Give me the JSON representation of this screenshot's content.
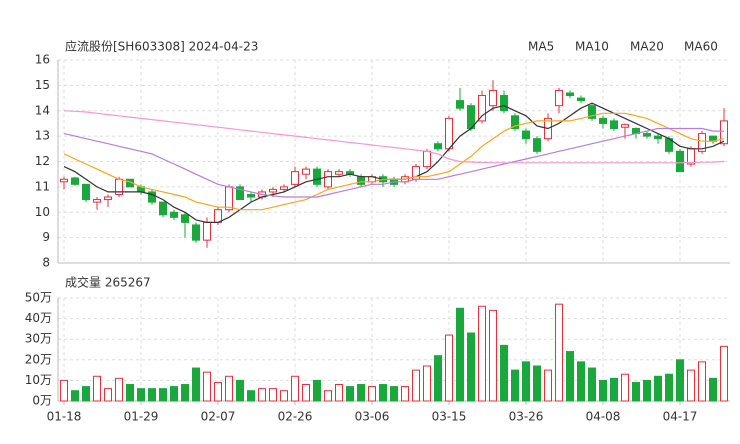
{
  "chart_data": [
    {
      "type": "candlestick",
      "title": "应流股份[SH603308] 2024-04-23",
      "open": [
        11.2,
        11.35,
        11.1,
        10.4,
        10.5,
        10.7,
        11.3,
        11.0,
        10.8,
        10.4,
        10.0,
        9.9,
        9.5,
        8.9,
        9.6,
        10.1,
        11.0,
        10.7,
        10.6,
        10.8,
        10.9,
        11.1,
        11.5,
        11.7,
        11.0,
        11.5,
        11.6,
        11.4,
        11.2,
        11.4,
        11.3,
        11.2,
        11.3,
        11.8,
        12.7,
        12.5,
        14.4,
        14.2,
        13.6,
        14.2,
        14.6,
        13.8,
        13.2,
        12.9,
        12.9,
        14.2,
        14.7,
        14.5,
        14.2,
        13.7,
        13.6,
        13.35,
        13.3,
        13.1,
        13.0,
        12.9,
        12.4,
        11.9,
        12.4,
        13.0,
        12.7
      ],
      "close": [
        11.3,
        11.1,
        10.5,
        10.5,
        10.6,
        11.3,
        11.0,
        10.8,
        10.4,
        9.9,
        9.8,
        9.6,
        8.9,
        9.6,
        10.1,
        11.0,
        10.5,
        10.6,
        10.8,
        10.9,
        11.0,
        11.6,
        11.7,
        11.1,
        11.6,
        11.6,
        11.5,
        11.1,
        11.4,
        11.2,
        11.1,
        11.4,
        11.8,
        12.4,
        12.5,
        13.7,
        14.1,
        13.3,
        14.6,
        14.8,
        14.0,
        13.3,
        12.9,
        12.4,
        13.7,
        14.8,
        14.6,
        14.4,
        13.7,
        13.5,
        13.3,
        13.45,
        13.1,
        13.0,
        12.9,
        12.4,
        11.6,
        12.5,
        13.1,
        12.8,
        13.6
      ],
      "high": [
        11.4,
        11.4,
        11.1,
        10.6,
        10.7,
        11.4,
        11.3,
        11.1,
        10.9,
        10.4,
        10.1,
        10.0,
        9.6,
        9.8,
        10.2,
        11.1,
        11.1,
        10.8,
        10.9,
        11.0,
        11.1,
        11.8,
        11.8,
        11.8,
        11.7,
        11.7,
        11.7,
        11.5,
        11.5,
        11.5,
        11.4,
        11.5,
        11.9,
        12.5,
        12.8,
        13.8,
        14.9,
        14.3,
        14.8,
        15.2,
        14.8,
        13.9,
        13.3,
        13.0,
        13.9,
        14.9,
        14.8,
        14.6,
        14.3,
        13.8,
        13.7,
        13.5,
        13.35,
        13.2,
        13.1,
        13.0,
        12.5,
        12.6,
        13.2,
        13.0,
        14.1
      ],
      "low": [
        10.9,
        11.05,
        10.4,
        10.1,
        10.2,
        10.6,
        11.0,
        10.7,
        10.3,
        9.8,
        9.7,
        9.0,
        8.8,
        8.6,
        9.5,
        10.0,
        10.5,
        10.4,
        10.5,
        10.6,
        10.8,
        11.0,
        11.3,
        11.0,
        10.9,
        11.4,
        11.4,
        11.0,
        11.1,
        11.0,
        11.0,
        11.1,
        11.2,
        11.7,
        12.4,
        12.4,
        14.0,
        13.2,
        13.5,
        14.0,
        13.9,
        13.2,
        12.7,
        12.3,
        12.8,
        13.9,
        14.5,
        14.3,
        13.6,
        13.3,
        13.2,
        12.9,
        12.9,
        12.9,
        12.7,
        12.3,
        11.6,
        11.8,
        12.3,
        12.7,
        12.6
      ],
      "up_color": "#e5303d",
      "down_color": "#1aa83c",
      "series": [
        {
          "name": "MA5",
          "color": "#333333",
          "values": [
            11.8,
            11.6,
            11.3,
            11.0,
            10.8,
            10.8,
            10.8,
            10.8,
            10.7,
            10.5,
            10.2,
            10.0,
            9.7,
            9.6,
            9.6,
            9.8,
            10.1,
            10.4,
            10.6,
            10.7,
            10.8,
            11.0,
            11.2,
            11.3,
            11.4,
            11.4,
            11.5,
            11.4,
            11.4,
            11.3,
            11.3,
            11.3,
            11.4,
            11.6,
            12.0,
            12.5,
            13.0,
            13.3,
            13.8,
            14.1,
            14.2,
            14.0,
            13.8,
            13.4,
            13.3,
            13.5,
            13.8,
            14.1,
            14.3,
            14.1,
            13.9,
            13.7,
            13.5,
            13.3,
            13.1,
            12.9,
            12.6,
            12.5,
            12.5,
            12.6,
            12.8
          ]
        },
        {
          "name": "MA10",
          "color": "#f5a623",
          "values": [
            12.3,
            12.1,
            11.9,
            11.7,
            11.5,
            11.3,
            11.2,
            11.0,
            10.9,
            10.8,
            10.7,
            10.6,
            10.4,
            10.3,
            10.2,
            10.2,
            10.1,
            10.1,
            10.1,
            10.2,
            10.3,
            10.4,
            10.5,
            10.7,
            10.9,
            11.0,
            11.1,
            11.2,
            11.2,
            11.3,
            11.3,
            11.3,
            11.4,
            11.4,
            11.5,
            11.6,
            11.9,
            12.2,
            12.6,
            12.9,
            13.2,
            13.4,
            13.5,
            13.6,
            13.6,
            13.6,
            13.6,
            13.7,
            13.8,
            13.9,
            13.9,
            13.9,
            13.8,
            13.7,
            13.5,
            13.3,
            13.1,
            12.9,
            12.8,
            12.8,
            12.9
          ]
        },
        {
          "name": "MA20",
          "color": "#b57edc",
          "values": [
            13.1,
            13.0,
            12.9,
            12.8,
            12.7,
            12.6,
            12.5,
            12.4,
            12.3,
            12.1,
            11.9,
            11.7,
            11.5,
            11.3,
            11.1,
            11.0,
            10.9,
            10.8,
            10.7,
            10.65,
            10.6,
            10.6,
            10.6,
            10.6,
            10.7,
            10.8,
            10.9,
            11.0,
            11.1,
            11.1,
            11.2,
            11.2,
            11.3,
            11.3,
            11.3,
            11.4,
            11.5,
            11.6,
            11.7,
            11.8,
            11.9,
            12.0,
            12.1,
            12.2,
            12.3,
            12.4,
            12.5,
            12.6,
            12.7,
            12.8,
            12.9,
            13.0,
            13.1,
            13.2,
            13.3,
            13.3,
            13.3,
            13.3,
            13.3,
            13.2,
            13.2
          ]
        },
        {
          "name": "MA60",
          "color": "#f29ad1",
          "values": [
            14.0,
            13.98,
            13.95,
            13.9,
            13.85,
            13.8,
            13.75,
            13.7,
            13.65,
            13.6,
            13.55,
            13.5,
            13.45,
            13.4,
            13.35,
            13.3,
            13.25,
            13.2,
            13.15,
            13.1,
            13.05,
            13.0,
            12.95,
            12.9,
            12.85,
            12.8,
            12.75,
            12.7,
            12.65,
            12.6,
            12.55,
            12.5,
            12.45,
            12.4,
            12.3,
            12.1,
            12.0,
            11.98,
            11.96,
            11.95,
            11.95,
            11.95,
            11.95,
            11.95,
            11.95,
            11.95,
            11.95,
            11.95,
            11.95,
            11.95,
            11.95,
            11.95,
            11.95,
            11.95,
            11.95,
            11.95,
            11.95,
            11.96,
            11.97,
            11.98,
            12.0
          ]
        }
      ],
      "ylim": [
        8,
        16
      ],
      "yticks": [
        8,
        9,
        10,
        11,
        12,
        13,
        14,
        15,
        16
      ],
      "grid": true
    },
    {
      "type": "bar",
      "title": "成交量 265267",
      "categories": [
        "01-18",
        null,
        null,
        null,
        null,
        null,
        null,
        "01-29",
        null,
        null,
        null,
        null,
        null,
        null,
        "02-07",
        null,
        null,
        null,
        null,
        null,
        null,
        "02-26",
        null,
        null,
        null,
        null,
        null,
        null,
        "03-06",
        null,
        null,
        null,
        null,
        null,
        null,
        "03-15",
        null,
        null,
        null,
        null,
        null,
        null,
        "03-26",
        null,
        null,
        null,
        null,
        null,
        null,
        "04-08",
        null,
        null,
        null,
        null,
        null,
        null,
        "04-17",
        null,
        null,
        null,
        null
      ],
      "values": [
        10,
        5,
        7,
        12,
        6,
        11,
        8,
        6,
        6,
        6,
        7,
        8,
        16,
        14,
        9,
        12,
        10,
        5,
        6,
        6,
        5,
        12,
        8,
        10,
        5,
        8,
        7,
        8,
        7,
        8,
        7,
        7,
        15,
        17,
        22,
        32,
        45,
        33,
        46,
        44,
        27,
        15,
        19,
        17,
        15,
        47,
        24,
        19,
        16,
        10,
        11,
        13,
        9,
        10,
        12,
        13,
        20,
        15,
        19,
        11,
        26.5267
      ],
      "ylim": [
        0,
        50
      ],
      "yticks": [
        {
          "value": 0,
          "label": "0万"
        },
        {
          "value": 10,
          "label": "10万"
        },
        {
          "value": 20,
          "label": "20万"
        },
        {
          "value": 30,
          "label": "30万"
        },
        {
          "value": 40,
          "label": "40万"
        },
        {
          "value": 50,
          "label": "50万"
        }
      ],
      "grid": true
    }
  ]
}
